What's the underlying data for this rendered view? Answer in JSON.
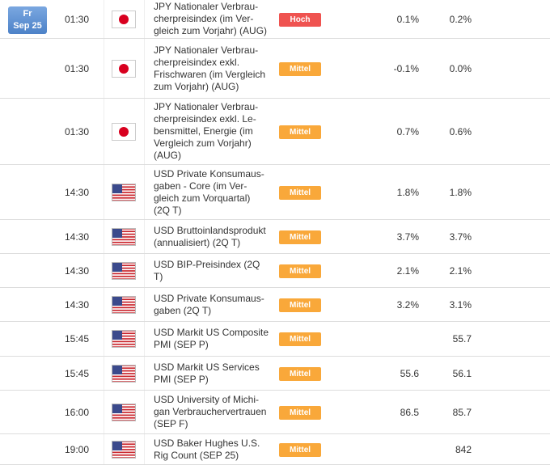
{
  "header": {
    "day": "Fr",
    "date": "Sep 25"
  },
  "rows": [
    {
      "time": "01:30",
      "event": [
        "JPY Nationaler Verbrau-",
        "cherpreisindex (im Ver-",
        "gleich zum Vorjahr) (AUG)"
      ],
      "importance": "Hoch",
      "importance_color": "#ef5350",
      "forecast": "0.1%",
      "previous": "0.2%"
    },
    {
      "time": "01:30",
      "event": [
        "JPY Nationaler Verbrau-",
        "cherpreisindex exkl.",
        "Frischwaren (im Vergleich",
        "zum Vorjahr) (AUG)"
      ],
      "importance": "Mittel",
      "importance_color": "#f9a83a",
      "forecast": "-0.1%",
      "previous": "0.0%"
    },
    {
      "time": "01:30",
      "event": [
        "JPY Nationaler Verbrau-",
        "cherpreisindex exkl. Le-",
        "bensmittel, Energie (im",
        "Vergleich zum Vorjahr)",
        "(AUG)"
      ],
      "importance": "Mittel",
      "importance_color": "#f9a83a",
      "forecast": "0.7%",
      "previous": "0.6%"
    },
    {
      "time": "14:30",
      "event": [
        "USD Private Konsumaus-",
        "gaben - Core (im Ver-",
        "gleich zum Vorquartal)",
        "(2Q T)"
      ],
      "importance": "Mittel",
      "importance_color": "#f9a83a",
      "forecast": "1.8%",
      "previous": "1.8%"
    },
    {
      "time": "14:30",
      "event": [
        "USD Bruttoinlandsprodukt",
        "(annualisiert) (2Q T)"
      ],
      "importance": "Mittel",
      "importance_color": "#f9a83a",
      "forecast": "3.7%",
      "previous": "3.7%"
    },
    {
      "time": "14:30",
      "event": [
        "USD BIP-Preisindex (2Q",
        "T)"
      ],
      "importance": "Mittel",
      "importance_color": "#f9a83a",
      "forecast": "2.1%",
      "previous": "2.1%"
    },
    {
      "time": "14:30",
      "event": [
        "USD Private Konsumaus-",
        "gaben (2Q T)"
      ],
      "importance": "Mittel",
      "importance_color": "#f9a83a",
      "forecast": "3.2%",
      "previous": "3.1%"
    },
    {
      "time": "15:45",
      "event": [
        "USD Markit US Composite",
        "PMI (SEP P)"
      ],
      "importance": "Mittel",
      "importance_color": "#f9a83a",
      "forecast": null,
      "previous": "55.7"
    },
    {
      "time": "15:45",
      "event": [
        "USD Markit US Services",
        "PMI (SEP P)"
      ],
      "importance": "Mittel",
      "importance_color": "#f9a83a",
      "forecast": "55.6",
      "previous": "56.1"
    },
    {
      "time": "16:00",
      "event": [
        "USD University of Michi-",
        "gan Verbrauchervertrauen",
        "(SEP F)"
      ],
      "importance": "Mittel",
      "importance_color": "#f9a83a",
      "forecast": "86.5",
      "previous": "85.7"
    },
    {
      "time": "19:00",
      "event": [
        "USD Baker Hughes U.S.",
        "Rig Count (SEP 25)"
      ],
      "importance": "Mittel",
      "importance_color": "#f9a83a",
      "forecast": null,
      "previous": "842"
    }
  ]
}
